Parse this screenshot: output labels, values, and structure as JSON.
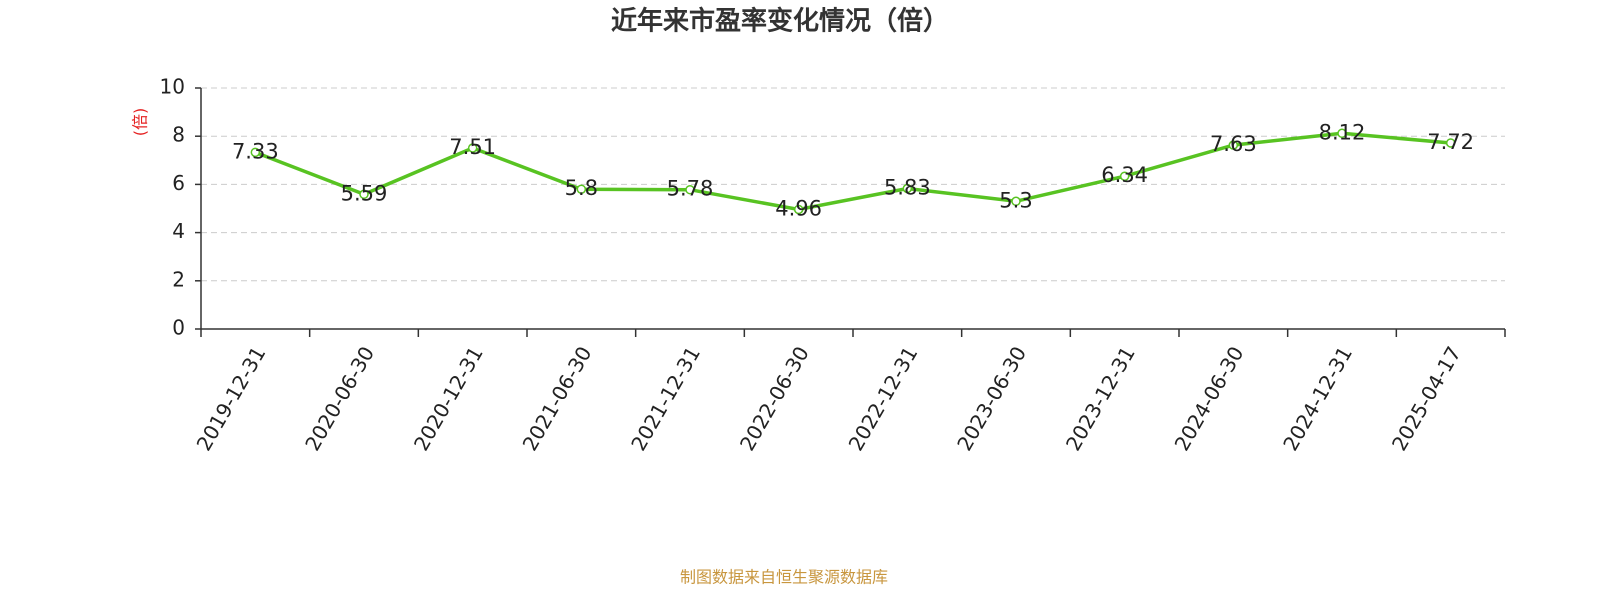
{
  "chart_data": {
    "type": "line",
    "title": "近年来市盈率变化情况（倍）",
    "y_label": "(倍)",
    "source": "制图数据来自恒生聚源数据库",
    "categories": [
      "2019-12-31",
      "2020-06-30",
      "2020-12-31",
      "2021-06-30",
      "2021-12-31",
      "2022-06-30",
      "2022-12-31",
      "2023-06-30",
      "2023-12-31",
      "2024-06-30",
      "2024-12-31",
      "2025-04-17"
    ],
    "values": [
      7.33,
      5.59,
      7.51,
      5.8,
      5.78,
      4.96,
      5.83,
      5.3,
      6.34,
      7.63,
      8.12,
      7.72
    ],
    "color": "#58c322",
    "ylim": [
      0,
      10
    ],
    "yticks": [
      0,
      2,
      4,
      6,
      8,
      10
    ],
    "grid": true
  }
}
